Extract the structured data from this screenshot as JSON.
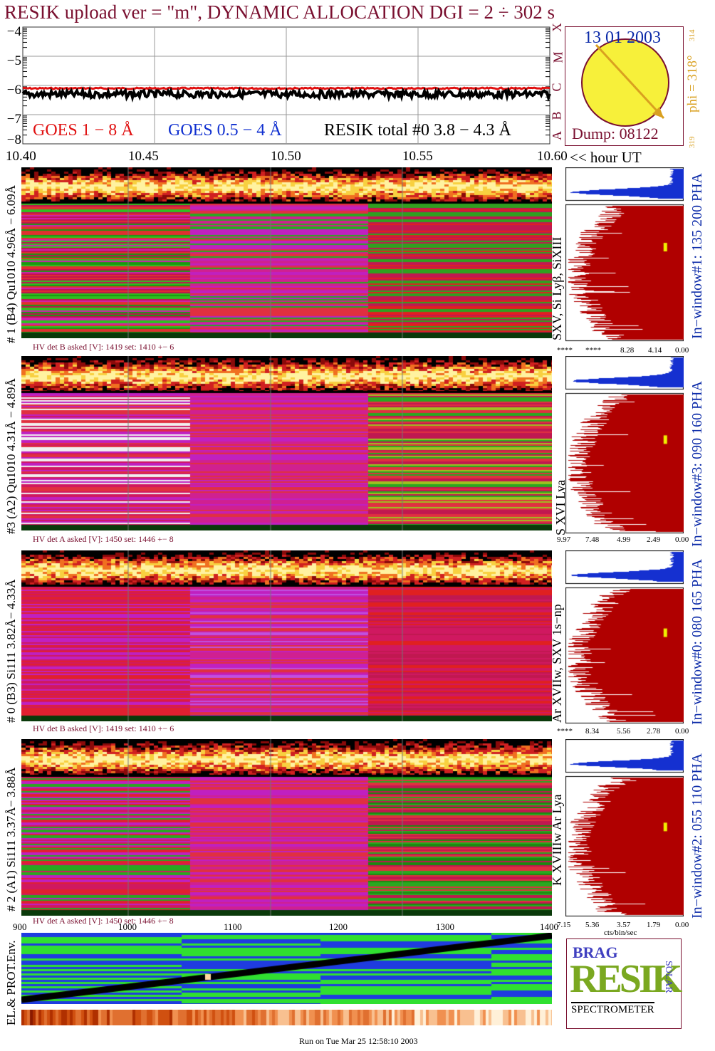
{
  "header": {
    "title": "RESIK upload ver = \"m\", DYNAMIC ALLOCATION  DGI =   2 ÷ 302 s"
  },
  "top_plot": {
    "y_ticks": [
      "−4",
      "−5",
      "−6",
      "−7",
      "−8"
    ],
    "goes_classes": [
      "X",
      "M",
      "C",
      "B",
      "A"
    ],
    "legend_goes_long": "GOES 1 − 8 Å",
    "legend_goes_short": "GOES 0.5 − 4 Å",
    "legend_resik": "RESIK total #0  3.8 − 4.3 Å",
    "colors": {
      "goes_long": "#e01010",
      "goes_short": "#1030d0",
      "resik": "#000000"
    }
  },
  "time_axis": {
    "ticks": [
      "10.40",
      "10.45",
      "10.50",
      "10.55",
      "10.60"
    ],
    "unit_label": "<< hour UT"
  },
  "orbit": {
    "date": "13 01 2003",
    "phi": "phi = 318°",
    "phi_small_top": "314",
    "phi_small_bottom": "319",
    "dump": "Dump: 08122"
  },
  "detectors": [
    {
      "side_label": "# 1 (B4) Qu1010 4.96Å − 6.09Å",
      "line_label": "SXV, Si Lyβ, SiXIII",
      "window_label": "In−window#1:  135 200 PHA",
      "hv_text": "HV det B asked [V]:  1419 set:  1410 +−    6",
      "hist_ticks": [
        "****",
        "****",
        "8.28",
        "4.14",
        "0.00"
      ]
    },
    {
      "side_label": "#3 (A2) Qu1010  4.31Å − 4.89Å",
      "line_label": "S XVI Lya",
      "window_label": "In−window#3:  090 160 PHA",
      "hv_text": "HV det A asked [V]:  1450 set:  1446 +−    8",
      "hist_ticks": [
        "9.97",
        "7.48",
        "4.99",
        "2.49",
        "0.00"
      ]
    },
    {
      "side_label": "# 0 (B3) Si111  3.82Å− 4.33Å",
      "line_label": "Ar XVIIw,  SXV 1s−np",
      "window_label": "In−window#0:  080 165 PHA",
      "hv_text": "HV det B asked [V]:  1419 set:  1410 +−    6",
      "hist_ticks": [
        "****",
        "8.34",
        "5.56",
        "2.78",
        "0.00"
      ]
    },
    {
      "side_label": "# 2 (A1) Si111  3.37Å− 3.88Å",
      "line_label": "K XVIIIw  Ar Lya",
      "window_label": "In−window#2:  055 110 PHA",
      "hv_text": "HV det A asked [V]:  1450 set:  1446 +−    8",
      "hist_ticks": [
        "7.15",
        "5.36",
        "3.57",
        "1.79",
        "0.00"
      ]
    }
  ],
  "hist_unit": "cts/bin/sec",
  "env_axis": {
    "ticks": [
      "900",
      "1000",
      "1100",
      "1200",
      "1300",
      "1400"
    ],
    "side_label": "EL.& PROT.Env."
  },
  "logo": {
    "letters_top": "BRAG",
    "letters_main": "RESIK",
    "letters_side": "SOLAR",
    "bottom": "SPECTROMETER"
  },
  "footer": "Run on Tue Mar 25 12:58:10 2003",
  "chart_data": {
    "type": "line",
    "title": "RESIK upload ver = \"m\", DYNAMIC ALLOCATION  DGI =   2 ÷ 302 s",
    "xlabel": "hour UT",
    "ylabel": "",
    "xlim": [
      10.4,
      10.6
    ],
    "ylim": [
      -8,
      -4
    ],
    "series": [
      {
        "name": "GOES 1 − 8 Å",
        "x": [
          10.4,
          10.45,
          10.5,
          10.55,
          10.6
        ],
        "values": [
          -6.1,
          -6.1,
          -6.1,
          -6.1,
          -6.1
        ]
      },
      {
        "name": "RESIK total #0  3.8 − 4.3 Å",
        "x": [
          10.4,
          10.45,
          10.5,
          10.55,
          10.6
        ],
        "values": [
          -6.3,
          -6.32,
          -6.3,
          -6.28,
          -6.25
        ]
      }
    ]
  }
}
